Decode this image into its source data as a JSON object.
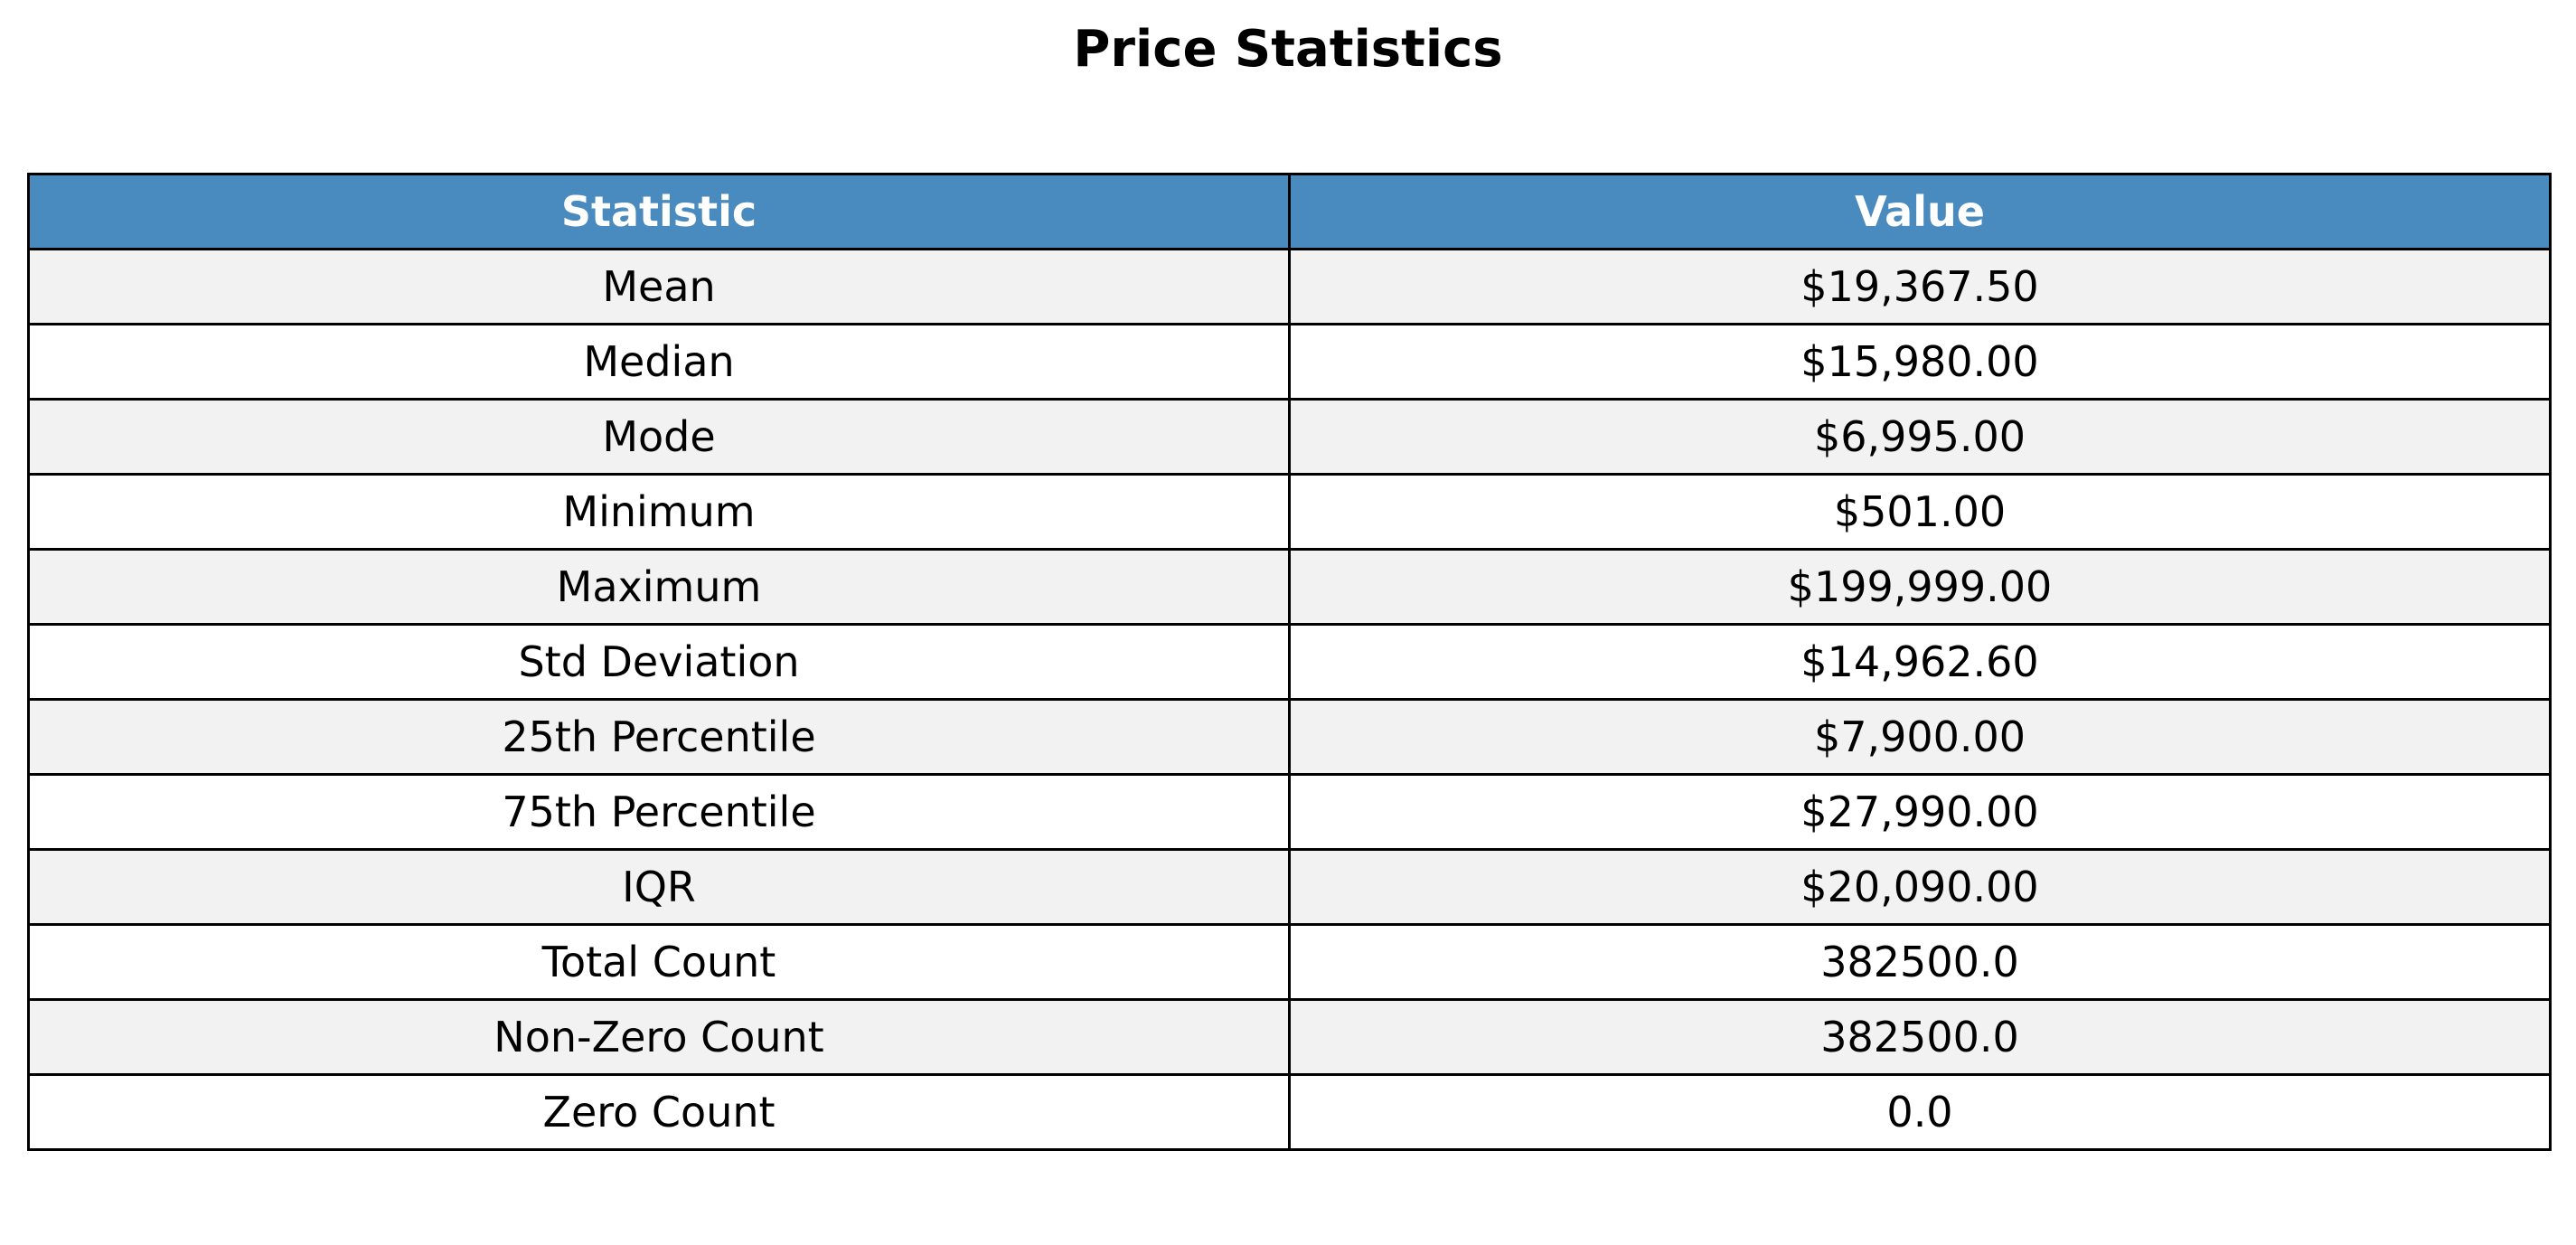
{
  "chart_data": {
    "type": "table",
    "title": "Price Statistics",
    "columns": [
      "Statistic",
      "Value"
    ],
    "rows": [
      [
        "Mean",
        "$19,367.50"
      ],
      [
        "Median",
        "$15,980.00"
      ],
      [
        "Mode",
        "$6,995.00"
      ],
      [
        "Minimum",
        "$501.00"
      ],
      [
        "Maximum",
        "$199,999.00"
      ],
      [
        "Std Deviation",
        "$14,962.60"
      ],
      [
        "25th Percentile",
        "$7,900.00"
      ],
      [
        "75th Percentile",
        "$27,990.00"
      ],
      [
        "IQR",
        "$20,090.00"
      ],
      [
        "Total Count",
        "382500.0"
      ],
      [
        "Non-Zero Count",
        "382500.0"
      ],
      [
        "Zero Count",
        "0.0"
      ]
    ],
    "colors": {
      "header_background": "#4a8bbf",
      "header_text": "#ffffff",
      "row_shaded": "#f2f2f2",
      "row_plain": "#ffffff",
      "border": "#000000"
    }
  }
}
